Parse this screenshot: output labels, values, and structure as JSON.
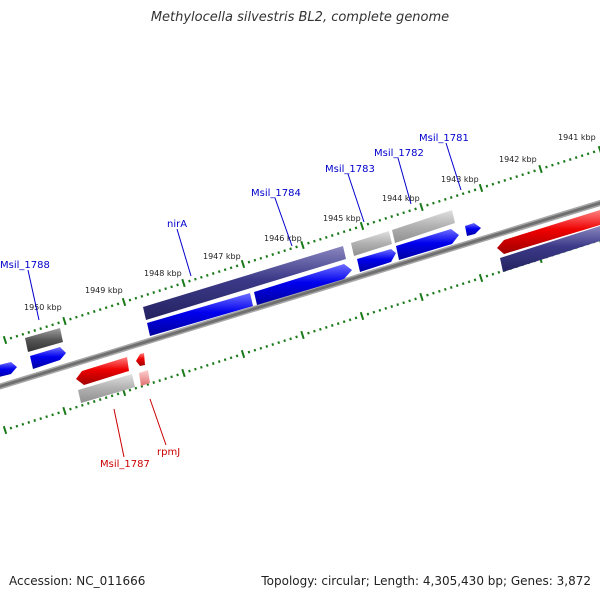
{
  "title": "Methylocella silvestris BL2, complete genome",
  "footer": {
    "accession": "Accession: NC_011666",
    "stats": "Topology: circular; Length: 4,305,430 bp; Genes: 3,872"
  },
  "scale_labels": [
    "1941 kbp",
    "1942 kbp",
    "1943 kbp",
    "1944 kbp",
    "1945 kbp",
    "1946 kbp",
    "1947 kbp",
    "1948 kbp",
    "1949 kbp",
    "1950 kbp"
  ],
  "gene_labels": {
    "msil_1781": "Msil_1781",
    "msil_1782": "Msil_1782",
    "msil_1783": "Msil_1783",
    "msil_1784": "Msil_1784",
    "nirA": "nirA",
    "msil_1788": "Msil_1788",
    "msil_1787": "Msil_1787",
    "rpmJ": "rpmJ"
  },
  "colors": {
    "forward_cds": "#0000ee",
    "forward_gene": "#3a3a8c",
    "reverse_cds": "#e00000",
    "pseudo": "#999999",
    "label_forward": "#0000cc",
    "label_reverse": "#cc0000",
    "tick": "#1a7a1a",
    "backbone": "#808080"
  }
}
